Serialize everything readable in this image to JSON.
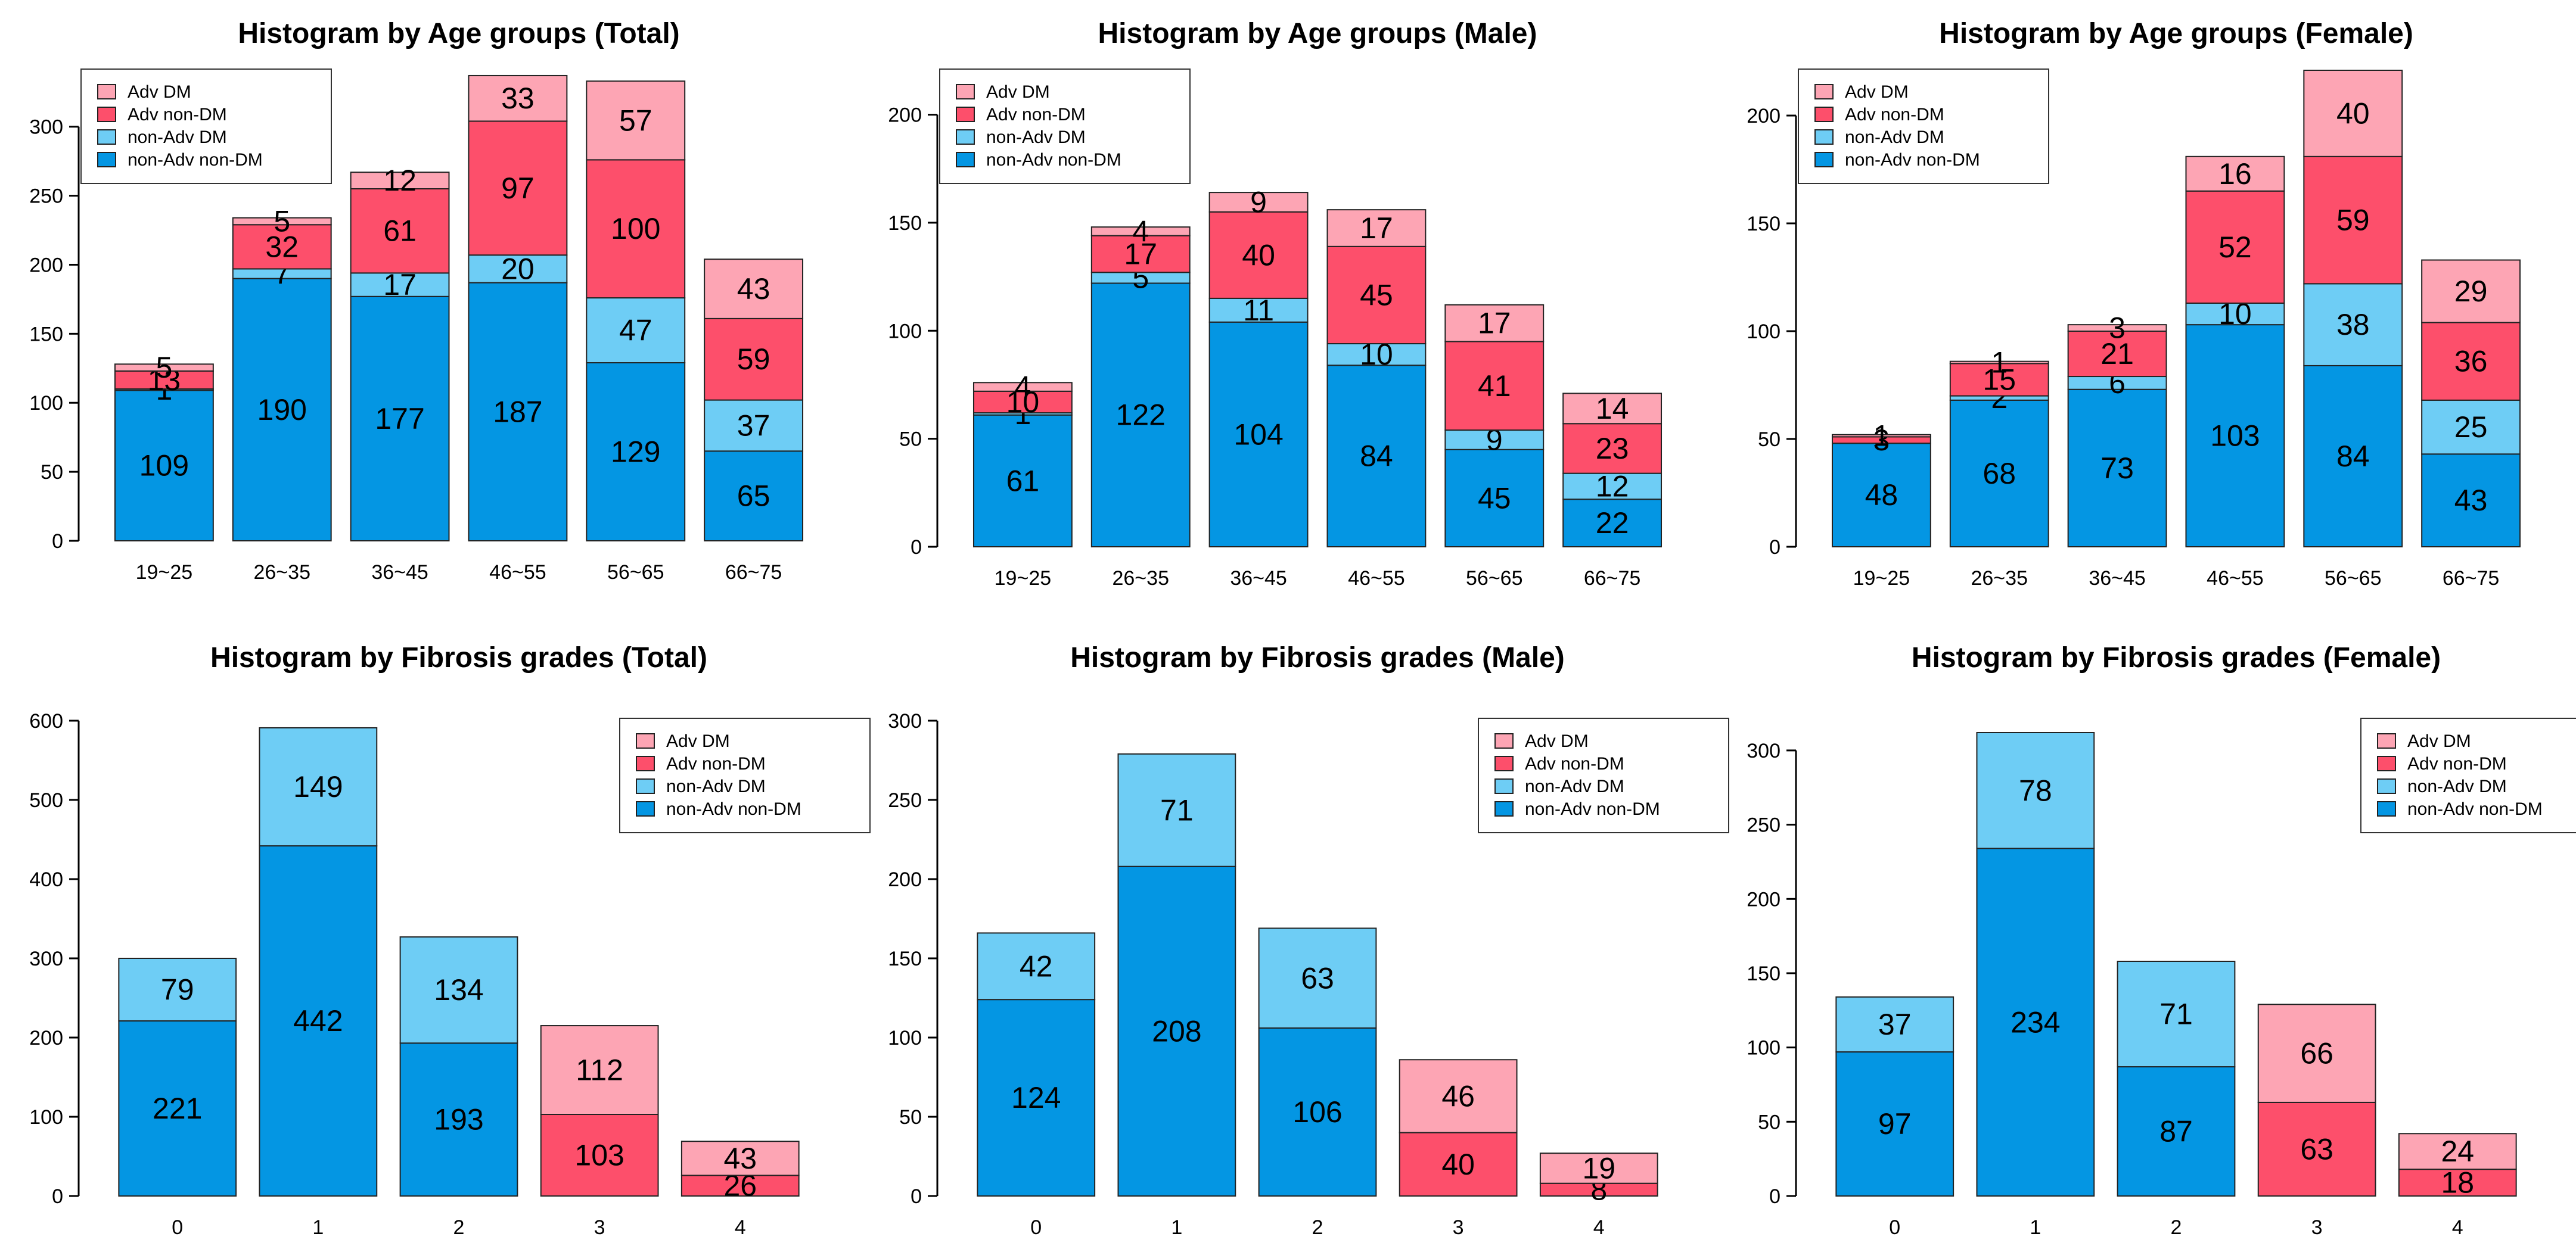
{
  "colors": {
    "non_adv_non_dm": "#0496E3",
    "non_adv_dm": "#6ECDF5",
    "adv_non_dm": "#FD4F6B",
    "adv_dm": "#FDA5B4",
    "border": "#222222",
    "axis": "#000000"
  },
  "legend_labels": [
    "Adv DM",
    "Adv non-DM",
    "non-Adv DM",
    "non-Adv non-DM"
  ],
  "chart_data": [
    {
      "type": "bar",
      "stacked": true,
      "title": "Histogram by Age groups (Total)",
      "xlabel": "",
      "ylabel": "",
      "categories": [
        "19~25",
        "26~35",
        "36~45",
        "46~55",
        "56~65",
        "66~75"
      ],
      "ylim": [
        0,
        340
      ],
      "yticks": [
        0,
        50,
        100,
        150,
        200,
        250,
        300
      ],
      "legend_position": "top-left",
      "series": [
        {
          "name": "non-Adv non-DM",
          "values": [
            109,
            190,
            177,
            187,
            129,
            65
          ]
        },
        {
          "name": "non-Adv DM",
          "values": [
            1,
            7,
            17,
            20,
            47,
            37
          ]
        },
        {
          "name": "Adv non-DM",
          "values": [
            13,
            32,
            61,
            97,
            100,
            59
          ]
        },
        {
          "name": "Adv DM",
          "values": [
            5,
            5,
            12,
            33,
            57,
            43
          ]
        }
      ]
    },
    {
      "type": "bar",
      "stacked": true,
      "title": "Histogram by Age groups (Male)",
      "xlabel": "",
      "ylabel": "",
      "categories": [
        "19~25",
        "26~35",
        "36~45",
        "46~55",
        "56~65",
        "66~75"
      ],
      "ylim": [
        0,
        220
      ],
      "yticks": [
        0,
        50,
        100,
        150,
        200
      ],
      "legend_position": "top-left",
      "series": [
        {
          "name": "non-Adv non-DM",
          "values": [
            61,
            122,
            104,
            84,
            45,
            22
          ]
        },
        {
          "name": "non-Adv DM",
          "values": [
            1,
            5,
            11,
            10,
            9,
            12
          ]
        },
        {
          "name": "Adv non-DM",
          "values": [
            10,
            17,
            40,
            45,
            41,
            23
          ]
        },
        {
          "name": "Adv DM",
          "values": [
            4,
            4,
            9,
            17,
            17,
            14
          ]
        }
      ]
    },
    {
      "type": "bar",
      "stacked": true,
      "title": "Histogram by Age groups (Female)",
      "xlabel": "",
      "ylabel": "",
      "categories": [
        "19~25",
        "26~35",
        "36~45",
        "46~55",
        "56~65",
        "66~75"
      ],
      "ylim": [
        0,
        221
      ],
      "yticks": [
        0,
        50,
        100,
        150,
        200
      ],
      "legend_position": "top-left",
      "series": [
        {
          "name": "non-Adv non-DM",
          "values": [
            48,
            68,
            73,
            103,
            84,
            43
          ]
        },
        {
          "name": "non-Adv DM",
          "values": [
            0,
            2,
            6,
            10,
            38,
            25
          ]
        },
        {
          "name": "Adv non-DM",
          "values": [
            3,
            15,
            21,
            52,
            59,
            36
          ]
        },
        {
          "name": "Adv DM",
          "values": [
            1,
            1,
            3,
            16,
            40,
            29
          ]
        }
      ]
    },
    {
      "type": "bar",
      "stacked": true,
      "title": "Histogram by Fibrosis grades (Total)",
      "xlabel": "",
      "ylabel": "",
      "categories": [
        "0",
        "1",
        "2",
        "3",
        "4"
      ],
      "ylim": [
        0,
        600
      ],
      "yticks": [
        0,
        100,
        200,
        300,
        400,
        500,
        600
      ],
      "legend_position": "top-right",
      "series": [
        {
          "name": "non-Adv non-DM",
          "values": [
            221,
            442,
            193,
            0,
            0
          ]
        },
        {
          "name": "non-Adv DM",
          "values": [
            79,
            149,
            134,
            0,
            0
          ]
        },
        {
          "name": "Adv non-DM",
          "values": [
            0,
            0,
            0,
            103,
            26
          ]
        },
        {
          "name": "Adv DM",
          "values": [
            0,
            0,
            0,
            112,
            43
          ]
        }
      ]
    },
    {
      "type": "bar",
      "stacked": true,
      "title": "Histogram by Fibrosis grades (Male)",
      "xlabel": "",
      "ylabel": "",
      "categories": [
        "0",
        "1",
        "2",
        "3",
        "4"
      ],
      "ylim": [
        0,
        300
      ],
      "yticks": [
        0,
        50,
        100,
        150,
        200,
        250,
        300
      ],
      "legend_position": "top-right",
      "series": [
        {
          "name": "non-Adv non-DM",
          "values": [
            124,
            208,
            106,
            0,
            0
          ]
        },
        {
          "name": "non-Adv DM",
          "values": [
            42,
            71,
            63,
            0,
            0
          ]
        },
        {
          "name": "Adv non-DM",
          "values": [
            0,
            0,
            0,
            40,
            8
          ]
        },
        {
          "name": "Adv DM",
          "values": [
            0,
            0,
            0,
            46,
            19
          ]
        }
      ]
    },
    {
      "type": "bar",
      "stacked": true,
      "title": "Histogram by Fibrosis grades (Female)",
      "xlabel": "",
      "ylabel": "",
      "categories": [
        "0",
        "1",
        "2",
        "3",
        "4"
      ],
      "ylim": [
        0,
        312
      ],
      "yticks": [
        0,
        50,
        100,
        150,
        200,
        250,
        300
      ],
      "legend_position": "top-right",
      "series": [
        {
          "name": "non-Adv non-DM",
          "values": [
            97,
            234,
            87,
            0,
            0
          ]
        },
        {
          "name": "non-Adv DM",
          "values": [
            37,
            78,
            71,
            0,
            0
          ]
        },
        {
          "name": "Adv non-DM",
          "values": [
            0,
            0,
            0,
            63,
            18
          ]
        },
        {
          "name": "Adv DM",
          "values": [
            0,
            0,
            0,
            66,
            24
          ]
        }
      ]
    }
  ]
}
